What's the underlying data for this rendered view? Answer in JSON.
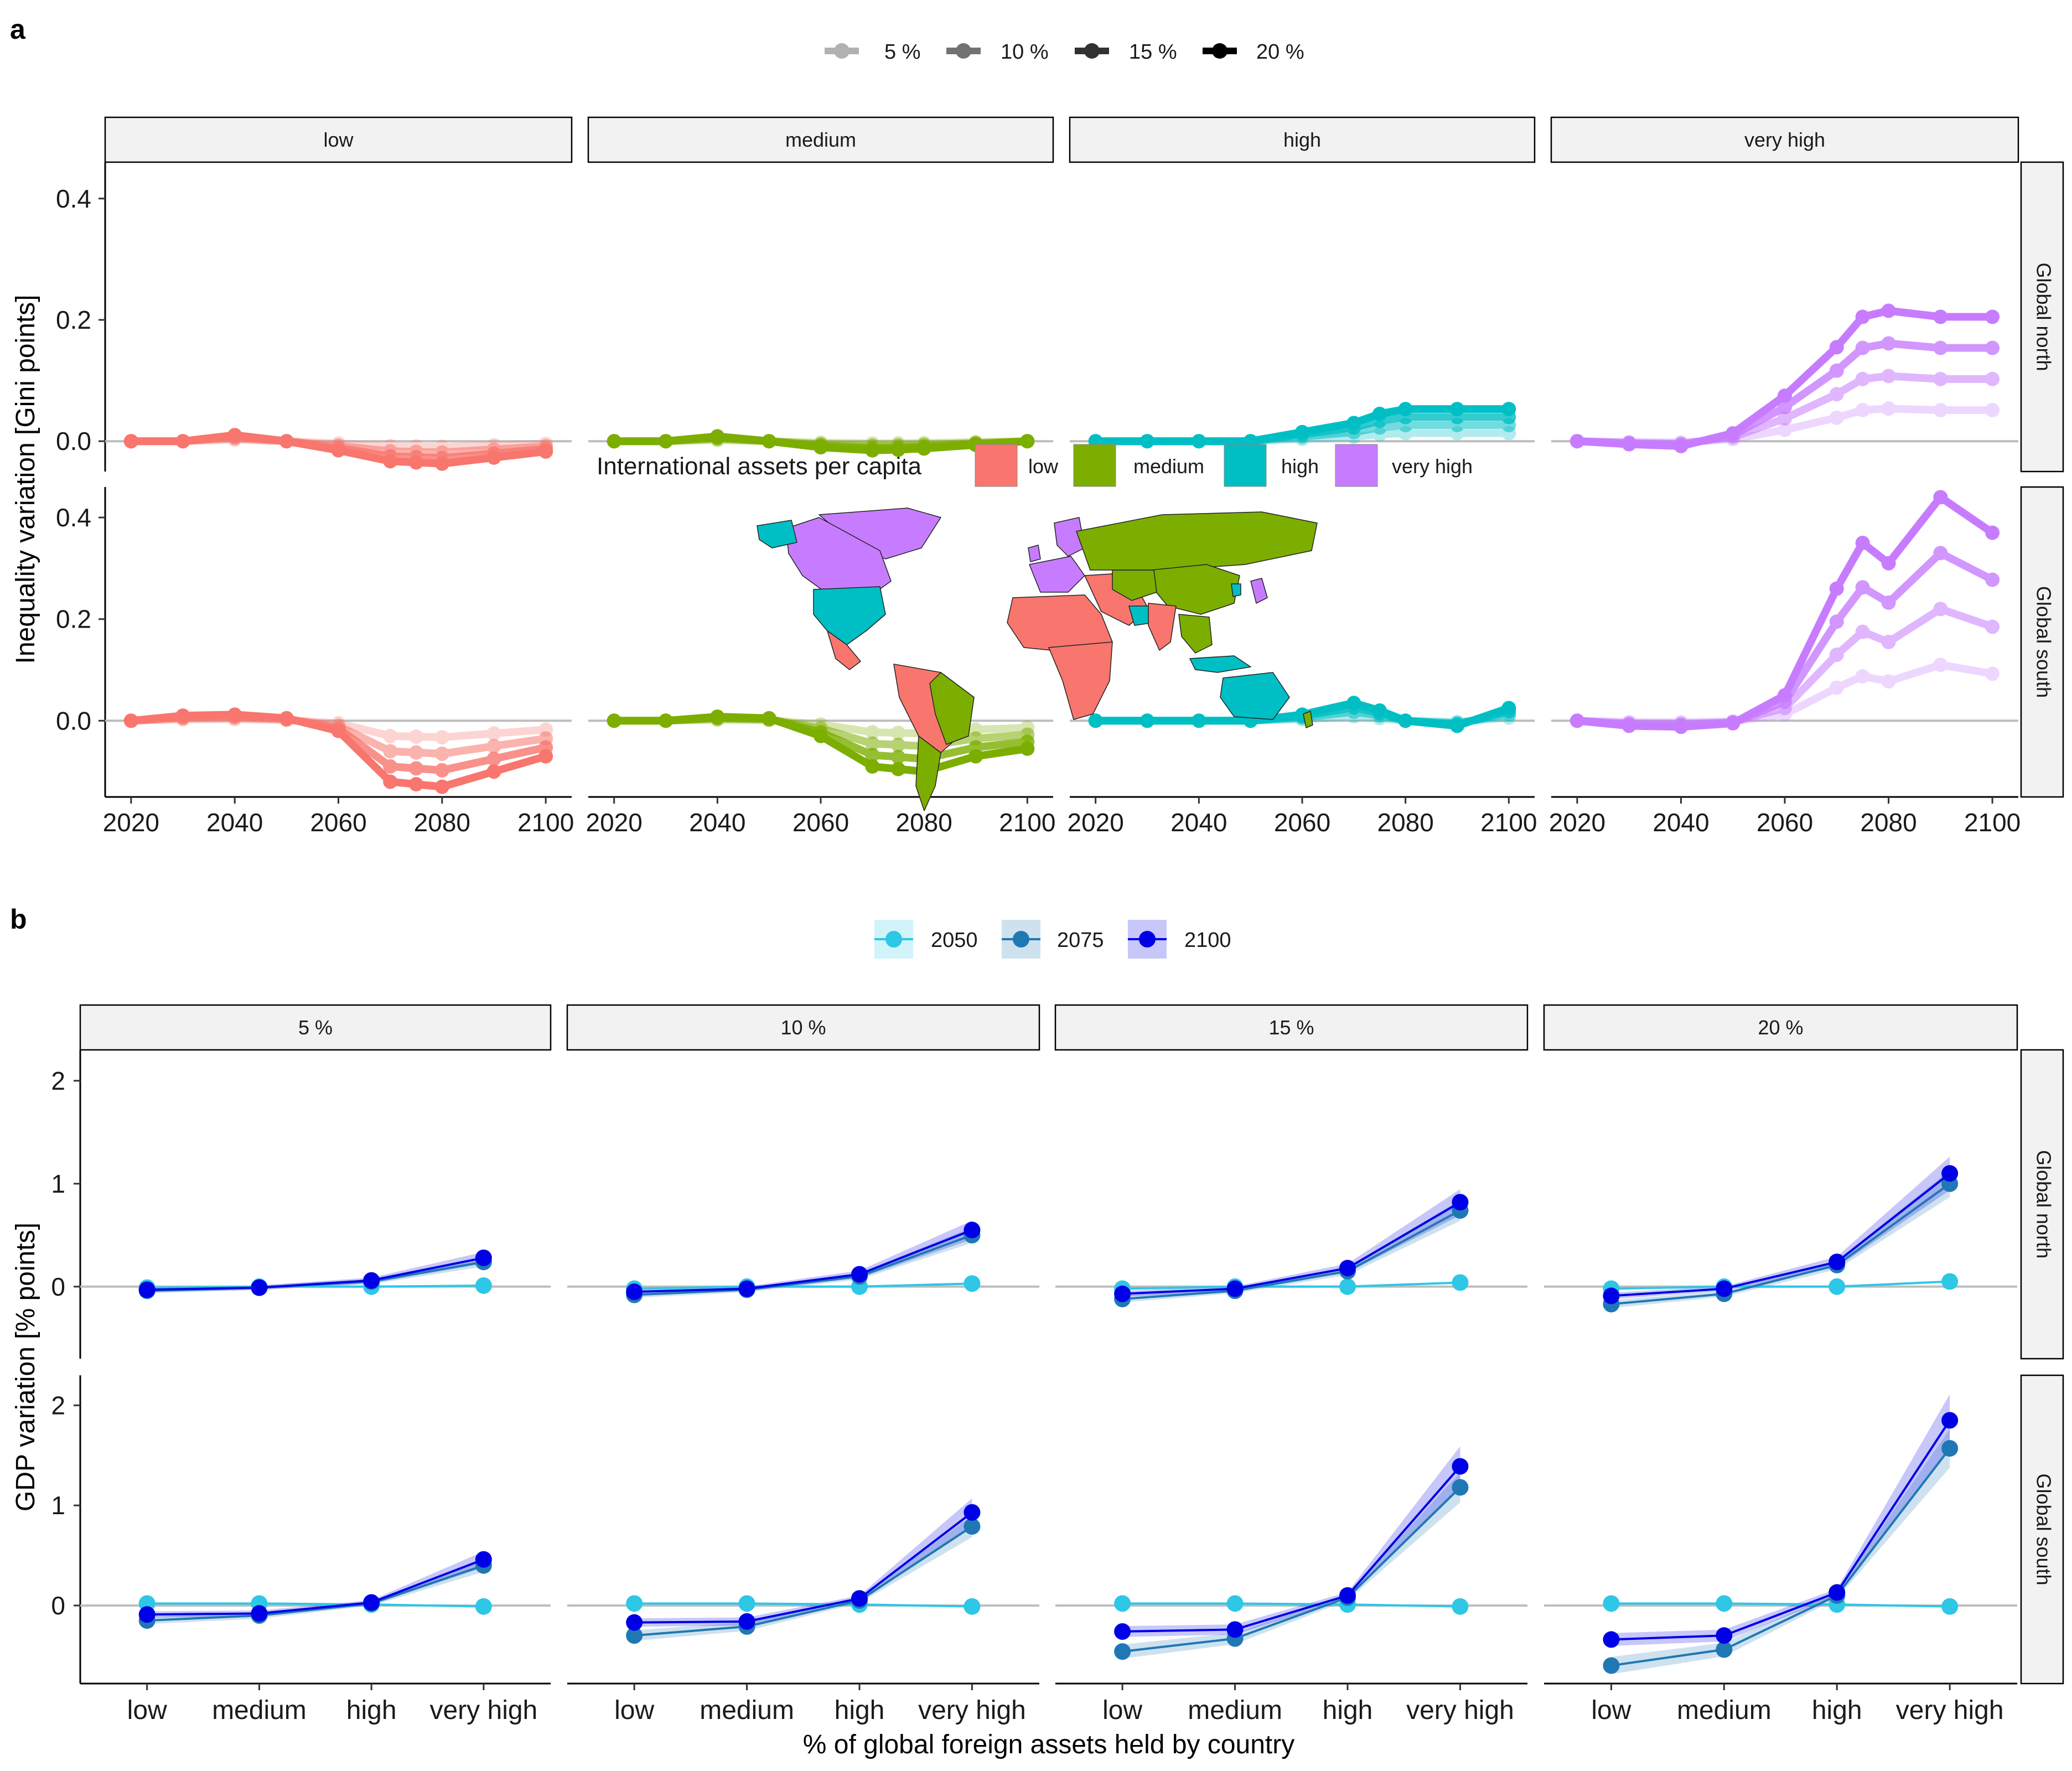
{
  "figure": {
    "panel_a_label": "a",
    "panel_b_label": "b",
    "map_legend_title": "International assets per capita",
    "map_legend_items": [
      {
        "label": "low",
        "color": "#F8766D"
      },
      {
        "label": "medium",
        "color": "#7CAE00"
      },
      {
        "label": "high",
        "color": "#00BFC4"
      },
      {
        "label": "very high",
        "color": "#C77CFF"
      }
    ]
  },
  "chart_data": [
    {
      "type": "line",
      "panel": "a",
      "ylabel": "Inequality variation [Gini points]",
      "xlabel": "",
      "legend": {
        "position": "top",
        "entries": [
          "5 %",
          "10 %",
          "15 %",
          "20 %"
        ],
        "alphas": [
          0.3,
          0.55,
          0.8,
          1.0
        ]
      },
      "columns": [
        "low",
        "medium",
        "high",
        "very high"
      ],
      "rows": [
        "Global north",
        "Global south"
      ],
      "colors": {
        "low": "#F8766D",
        "medium": "#7CAE00",
        "high": "#00BFC4",
        "very high": "#C77CFF"
      },
      "x": [
        2020,
        2030,
        2040,
        2050,
        2060,
        2070,
        2075,
        2080,
        2090,
        2100
      ],
      "x_ticks": [
        2020,
        2040,
        2060,
        2080,
        2100
      ],
      "xlim": [
        2015,
        2105
      ],
      "y_ticks_north": [
        0.0,
        0.2,
        0.4
      ],
      "y_ticks_south": [
        0.0,
        0.2,
        0.4
      ],
      "ylim_north": [
        -0.05,
        0.46
      ],
      "ylim_south": [
        -0.15,
        0.46
      ],
      "series": {
        "Global north": {
          "low": {
            "20 %": [
              0.0,
              0.0,
              0.01,
              0.0,
              -0.015,
              -0.033,
              -0.035,
              -0.037,
              -0.027,
              -0.017
            ]
          },
          "medium": {
            "20 %": [
              0.0,
              0.0,
              0.008,
              0.0,
              -0.01,
              -0.015,
              -0.014,
              -0.012,
              -0.006,
              0.0
            ]
          },
          "high": {
            "20 %": [
              0.0,
              0.0,
              0.0,
              0.0,
              0.015,
              0.03,
              0.045,
              0.053,
              0.053,
              0.053
            ]
          },
          "very high": {
            "20 %": [
              0.0,
              -0.005,
              -0.008,
              0.013,
              0.075,
              0.155,
              0.205,
              0.215,
              0.205,
              0.205
            ]
          }
        },
        "Global south": {
          "low": {
            "20 %": [
              0.0,
              0.01,
              0.012,
              0.005,
              -0.02,
              -0.12,
              -0.125,
              -0.13,
              -0.1,
              -0.07
            ]
          },
          "medium": {
            "20 %": [
              0.0,
              0.0,
              0.008,
              0.005,
              -0.03,
              -0.09,
              -0.095,
              -0.1,
              -0.07,
              -0.055
            ]
          },
          "high": {
            "20 %": [
              0.0,
              0.0,
              0.0,
              0.0,
              0.012,
              0.035,
              0.02,
              0.0,
              -0.01,
              0.025
            ]
          },
          "very high": {
            "20 %": [
              0.0,
              -0.01,
              -0.012,
              -0.005,
              0.05,
              0.26,
              0.35,
              0.31,
              0.44,
              0.37
            ]
          }
        }
      }
    },
    {
      "type": "line",
      "panel": "b",
      "ylabel": "GDP variation [% points]",
      "xlabel": "% of global foreign assets held by country",
      "legend": {
        "position": "top",
        "entries": [
          "2050",
          "2075",
          "2100"
        ]
      },
      "columns": [
        "5 %",
        "10 %",
        "15 %",
        "20 %"
      ],
      "rows": [
        "Global north",
        "Global south"
      ],
      "categories": [
        "low",
        "medium",
        "high",
        "very high"
      ],
      "y_ticks": [
        0,
        1,
        2
      ],
      "ylim_north": [
        -0.7,
        2.3
      ],
      "ylim_south": [
        -0.78,
        2.3
      ],
      "colors": {
        "2050": "#2EC7E6",
        "2075": "#1F78B4",
        "2100": "#0000E6"
      },
      "series": {
        "Global north": {
          "5 %": {
            "2050": [
              -0.01,
              0.0,
              0.0,
              0.01
            ],
            "2075": [
              -0.04,
              -0.01,
              0.05,
              0.24
            ],
            "2100": [
              -0.03,
              -0.01,
              0.06,
              0.28
            ]
          },
          "10 %": {
            "2050": [
              -0.02,
              0.0,
              0.0,
              0.03
            ],
            "2075": [
              -0.08,
              -0.03,
              0.1,
              0.5
            ],
            "2100": [
              -0.05,
              -0.02,
              0.12,
              0.55
            ]
          },
          "15 %": {
            "2050": [
              -0.02,
              0.0,
              0.0,
              0.04
            ],
            "2075": [
              -0.12,
              -0.04,
              0.15,
              0.74
            ],
            "2100": [
              -0.07,
              -0.02,
              0.18,
              0.82
            ]
          },
          "20 %": {
            "2050": [
              -0.02,
              0.0,
              0.0,
              0.05
            ],
            "2075": [
              -0.17,
              -0.07,
              0.21,
              1.0
            ],
            "2100": [
              -0.09,
              -0.02,
              0.24,
              1.1
            ]
          }
        },
        "Global south": {
          "5 %": {
            "2050": [
              0.02,
              0.02,
              0.01,
              -0.01
            ],
            "2075": [
              -0.15,
              -0.1,
              0.02,
              0.4
            ],
            "2100": [
              -0.09,
              -0.08,
              0.03,
              0.46
            ]
          },
          "10 %": {
            "2050": [
              0.02,
              0.02,
              0.01,
              -0.01
            ],
            "2075": [
              -0.3,
              -0.21,
              0.05,
              0.79
            ],
            "2100": [
              -0.17,
              -0.16,
              0.07,
              0.93
            ]
          },
          "15 %": {
            "2050": [
              0.02,
              0.02,
              0.01,
              -0.01
            ],
            "2075": [
              -0.46,
              -0.33,
              0.08,
              1.18
            ],
            "2100": [
              -0.26,
              -0.24,
              0.1,
              1.39
            ]
          },
          "20 %": {
            "2050": [
              0.02,
              0.02,
              0.01,
              -0.01
            ],
            "2075": [
              -0.6,
              -0.44,
              0.1,
              1.57
            ],
            "2100": [
              -0.34,
              -0.3,
              0.13,
              1.85
            ]
          }
        }
      }
    }
  ]
}
